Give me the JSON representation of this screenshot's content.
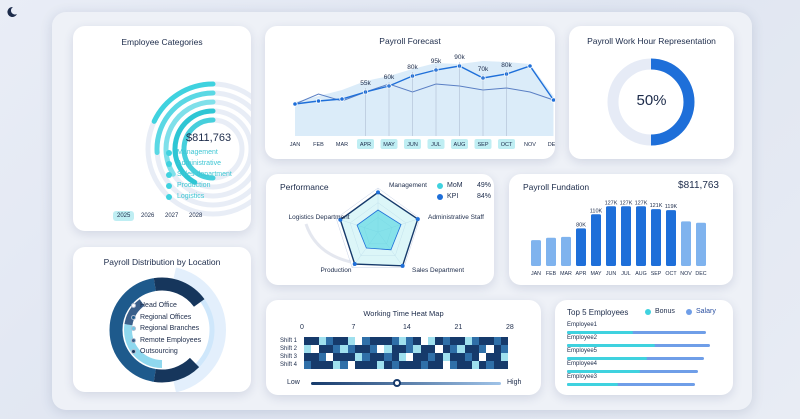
{
  "colors": {
    "teal": "#3fd2df",
    "blue": "#1e6fd9",
    "navy": "#163a6b",
    "light_blue": "#8fd0f0",
    "pale": "#e6ebf6"
  },
  "employee_categories": {
    "title": "Employee Categories",
    "total": "$811,763",
    "legend": [
      "Management",
      "Administrative",
      "Sales department",
      "Production",
      "Logistics"
    ],
    "shares": [
      0.82,
      0.74,
      0.66,
      0.58,
      0.5
    ],
    "years": [
      "2025",
      "2026",
      "2027",
      "2028"
    ],
    "active_year": "2025"
  },
  "payroll_forecast": {
    "title": "Payroll Forecast",
    "months": [
      "JAN",
      "FEB",
      "MAR",
      "APR",
      "MAY",
      "JUN",
      "JUL",
      "AUG",
      "SEP",
      "OCT",
      "NOV",
      "DEC"
    ],
    "highlighted": [
      false,
      false,
      false,
      true,
      true,
      true,
      true,
      true,
      true,
      true,
      false,
      false
    ],
    "labels": {
      "3": "55k",
      "4": "60k",
      "5": "80k",
      "6": "95k",
      "7": "90k",
      "8": "70k",
      "9": "80k"
    }
  },
  "work_hour": {
    "title": "Payroll Work Hour Representation",
    "value": "50%",
    "fraction": 0.5
  },
  "performance": {
    "title": "Performance",
    "axes": [
      "Management",
      "Administrative Staff",
      "Sales Department",
      "Production",
      "Logistics Department"
    ],
    "legend": [
      {
        "name": "MoM",
        "value": "49%"
      },
      {
        "name": "KPI",
        "value": "84%"
      }
    ],
    "mom": [
      0.5,
      0.55,
      0.5,
      0.45,
      0.5
    ],
    "kpi": [
      0.9,
      0.95,
      0.95,
      0.9,
      0.9
    ]
  },
  "payroll_fundation": {
    "title": "Payroll Fundation",
    "total": "$811,763",
    "months": [
      "JAN",
      "FEB",
      "MAR",
      "APR",
      "MAY",
      "JUN",
      "JUL",
      "AUG",
      "SEP",
      "OCT",
      "NOV",
      "DEC"
    ],
    "value_labels": [
      "",
      "",
      "",
      "80K",
      "110K",
      "127K",
      "127K",
      "127K",
      "121K",
      "119K",
      "",
      ""
    ],
    "values": [
      55,
      60,
      62,
      80,
      110,
      127,
      127,
      127,
      121,
      119,
      95,
      92
    ],
    "highlighted": [
      false,
      false,
      false,
      true,
      true,
      true,
      true,
      true,
      true,
      true,
      false,
      false
    ]
  },
  "distribution": {
    "title": "Payroll Distribution by Location",
    "legend": [
      "Head Office",
      "Regional Offices",
      "Regional Branches",
      "Remote Employees",
      "Outsourcing"
    ],
    "legend_colors": [
      "#ffffff",
      "#1e5a8c",
      "#6fc6e6",
      "#3a5f8a",
      "#16365c"
    ]
  },
  "heatmap": {
    "title": "Working Time Heat Map",
    "day_ticks": [
      "0",
      "7",
      "14",
      "21",
      "28"
    ],
    "rows": [
      "Shift 1",
      "Shift 2",
      "Shift 3",
      "Shift 4"
    ],
    "low_label": "Low",
    "high_label": "High",
    "slider_value": 0.45,
    "cells": [
      [
        3,
        3,
        1,
        2,
        3,
        3,
        1,
        0,
        2,
        3,
        3,
        3,
        2,
        1,
        2,
        3,
        0,
        1,
        3,
        2,
        3,
        3,
        1,
        2,
        3,
        3,
        2,
        3
      ],
      [
        1,
        0,
        3,
        3,
        2,
        1,
        2,
        3,
        3,
        2,
        0,
        1,
        3,
        3,
        2,
        1,
        3,
        3,
        0,
        3,
        2,
        1,
        3,
        3,
        2,
        0,
        3,
        2
      ],
      [
        3,
        3,
        2,
        0,
        3,
        3,
        3,
        1,
        2,
        3,
        3,
        2,
        3,
        1,
        0,
        3,
        3,
        2,
        3,
        1,
        3,
        3,
        2,
        3,
        0,
        3,
        3,
        1
      ],
      [
        2,
        3,
        3,
        3,
        1,
        2,
        0,
        3,
        3,
        3,
        1,
        3,
        2,
        3,
        3,
        3,
        2,
        3,
        3,
        0,
        2,
        3,
        3,
        1,
        3,
        2,
        3,
        3
      ]
    ]
  },
  "top_employees": {
    "title": "Top 5 Employees",
    "legend_bonus": "Bonus",
    "legend_salary": "Salary",
    "names": [
      "Employee1",
      "Employee2",
      "Employee5",
      "Employee4",
      "Employee3"
    ],
    "bonus": [
      0.45,
      0.6,
      0.55,
      0.5,
      0.35
    ],
    "salary": [
      0.95,
      0.98,
      0.94,
      0.9,
      0.88
    ]
  }
}
